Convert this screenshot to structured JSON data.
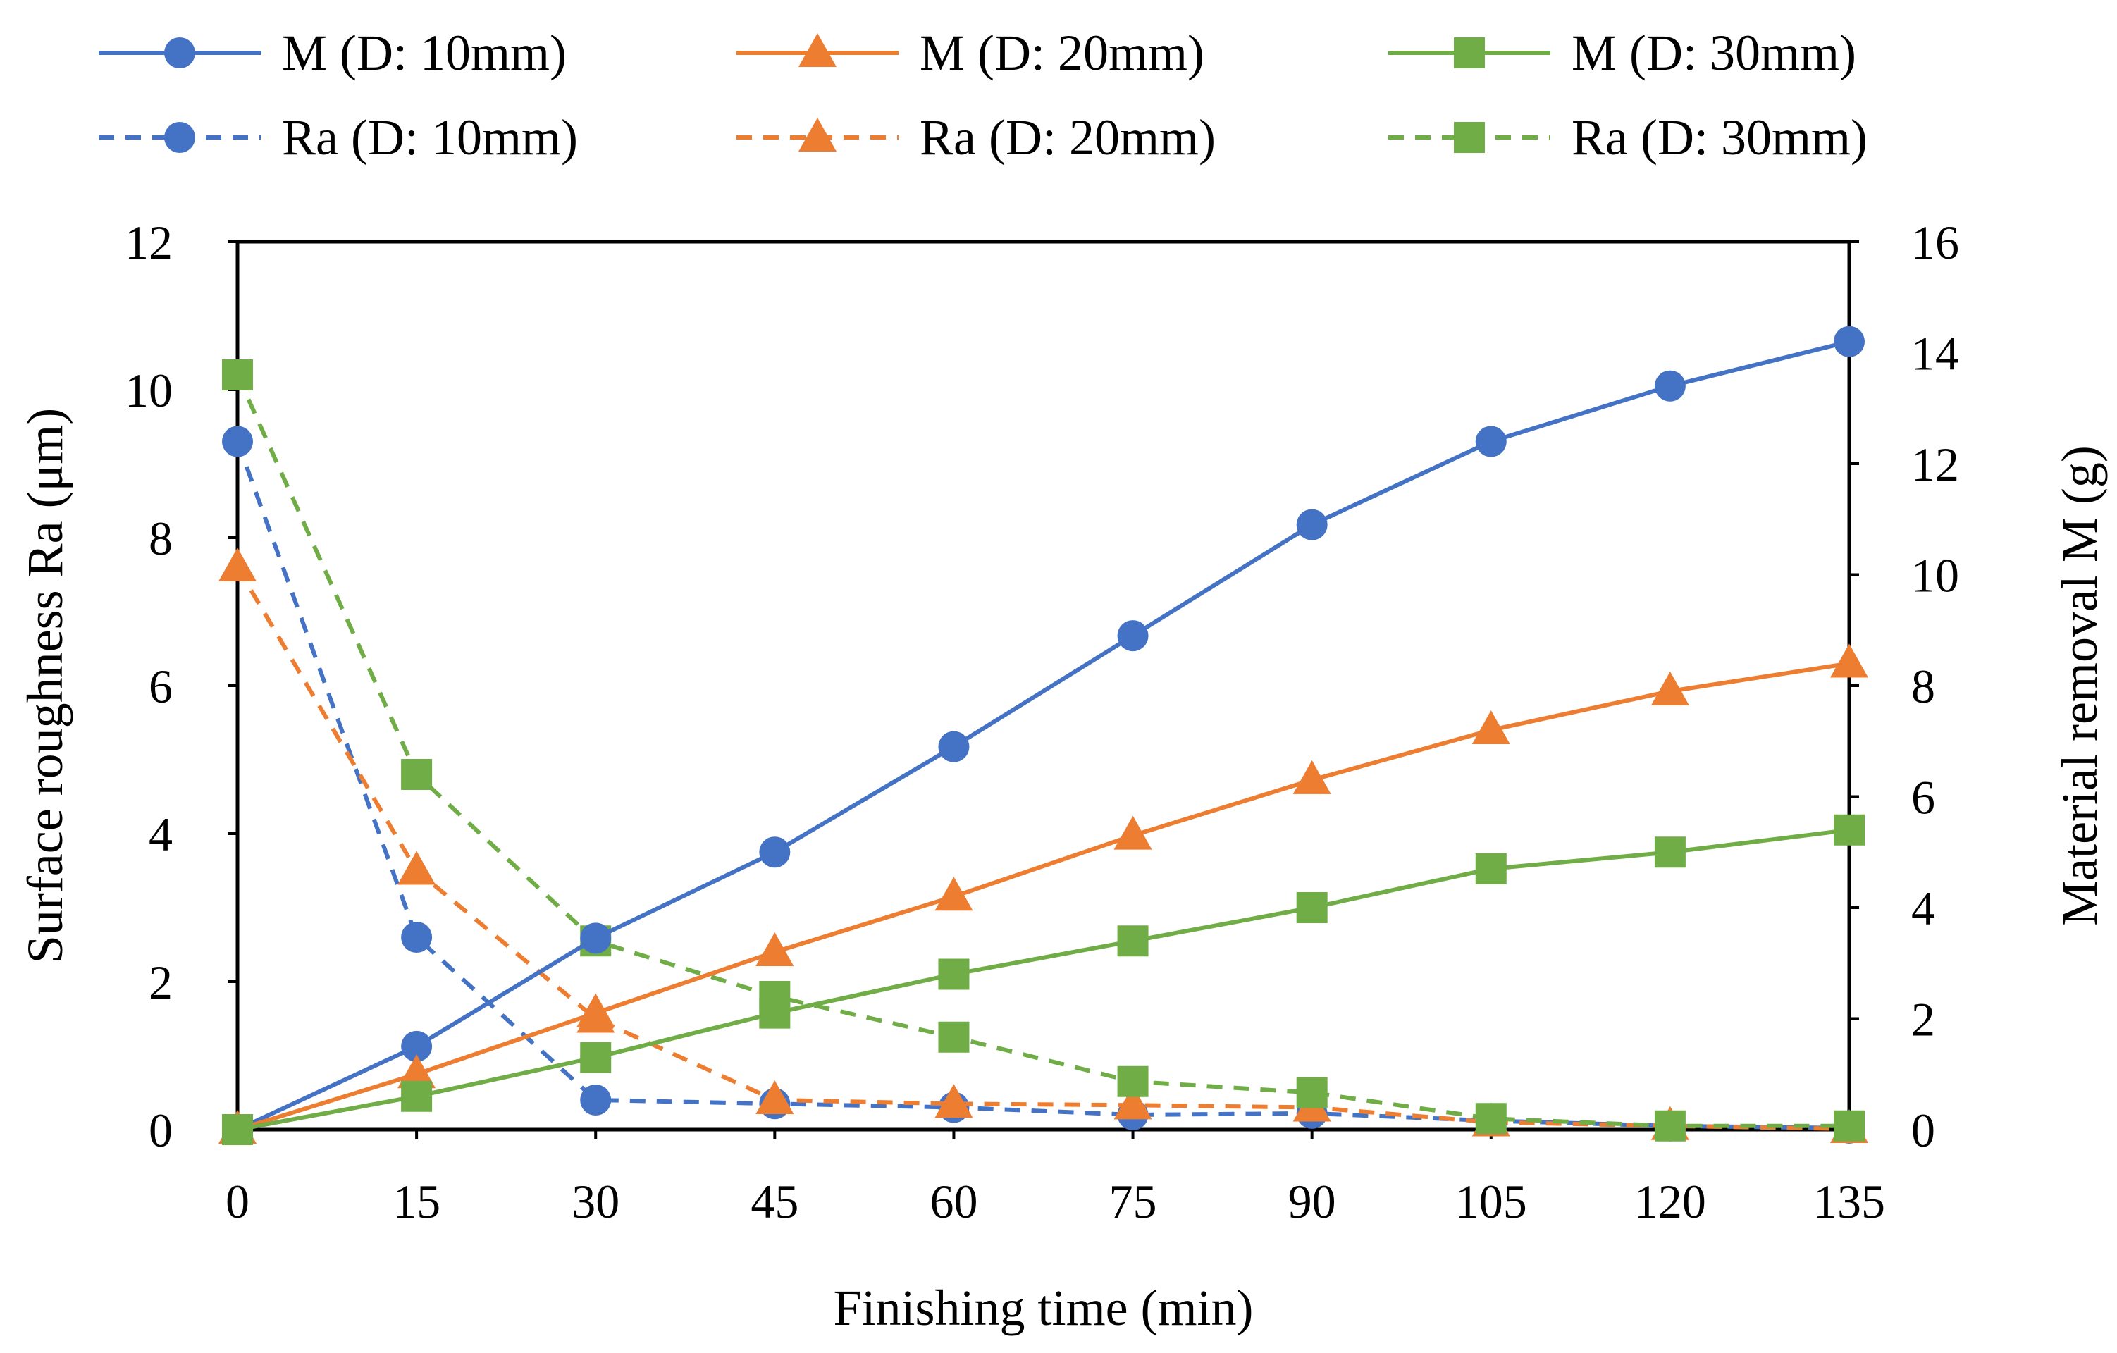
{
  "chart_data": {
    "type": "line",
    "xlabel": "Finishing time (min)",
    "ylabel_left": "Surface roughness Ra (μm)",
    "ylabel_right": "Material removal M (g)",
    "x": [
      0,
      15,
      30,
      45,
      60,
      75,
      90,
      105,
      120,
      135
    ],
    "x_tick_labels": [
      "0",
      "15",
      "30",
      "45",
      "60",
      "75",
      "90",
      "105",
      "120",
      "135"
    ],
    "ylim_left": [
      0,
      12
    ],
    "yticks_left": [
      "0",
      "2",
      "4",
      "6",
      "8",
      "10",
      "12"
    ],
    "ylim_right": [
      0,
      16
    ],
    "yticks_right": [
      "0",
      "2",
      "4",
      "6",
      "8",
      "10",
      "12",
      "14",
      "16"
    ],
    "grid": false,
    "legend_position": "top",
    "series": [
      {
        "name": "M (D: 10mm)",
        "axis": "right",
        "style": "solid",
        "marker": "circle",
        "color": "#4472C4",
        "values": [
          0,
          1.5,
          3.45,
          5.0,
          6.9,
          8.9,
          10.9,
          12.4,
          13.4,
          14.2
        ]
      },
      {
        "name": "M (D: 20mm)",
        "axis": "right",
        "style": "solid",
        "marker": "triangle",
        "color": "#ED7D31",
        "values": [
          0,
          1.0,
          2.1,
          3.2,
          4.2,
          5.3,
          6.3,
          7.2,
          7.9,
          8.4
        ]
      },
      {
        "name": "M (D: 30mm)",
        "axis": "right",
        "style": "solid",
        "marker": "square",
        "color": "#70AD47",
        "values": [
          0,
          0.6,
          1.3,
          2.1,
          2.8,
          3.4,
          4.0,
          4.7,
          5.0,
          5.4
        ]
      },
      {
        "name": "Ra (D: 10mm)",
        "axis": "left",
        "style": "dashed",
        "marker": "circle",
        "color": "#4472C4",
        "values": [
          9.3,
          2.6,
          0.4,
          0.35,
          0.3,
          0.2,
          0.22,
          0.12,
          0.05,
          0.02
        ]
      },
      {
        "name": "Ra (D: 20mm)",
        "axis": "left",
        "style": "dashed",
        "marker": "triangle",
        "color": "#ED7D31",
        "values": [
          7.6,
          3.5,
          1.5,
          0.4,
          0.35,
          0.33,
          0.3,
          0.1,
          0.05,
          0.01
        ]
      },
      {
        "name": "Ra (D: 30mm)",
        "axis": "left",
        "style": "dashed",
        "marker": "square",
        "color": "#70AD47",
        "values": [
          10.2,
          4.8,
          2.55,
          1.8,
          1.25,
          0.65,
          0.5,
          0.15,
          0.05,
          0.05
        ]
      }
    ]
  }
}
